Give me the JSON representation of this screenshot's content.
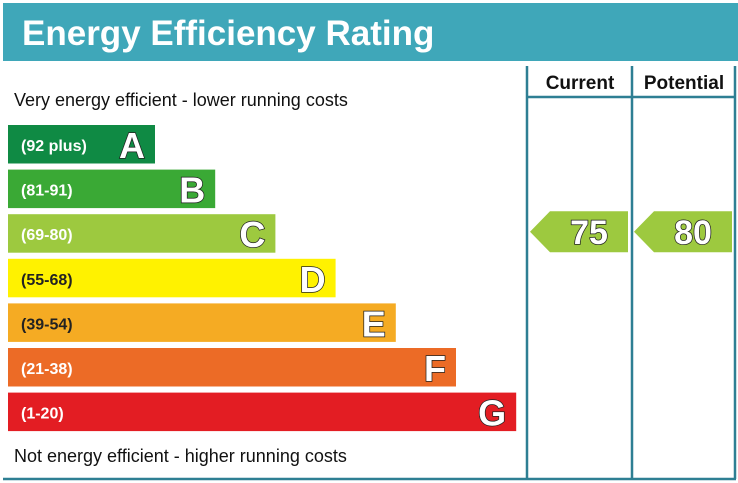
{
  "chart_data": {
    "type": "bar",
    "title": "Energy Efficiency Rating",
    "top_note": "Very energy efficient - lower running costs",
    "bottom_note": "Not energy efficient - higher running costs",
    "columns": [
      "Current",
      "Potential"
    ],
    "bands": [
      {
        "range": "(92 plus)",
        "letter": "A",
        "color": "#0f8a44"
      },
      {
        "range": "(81-91)",
        "letter": "B",
        "color": "#3aa935"
      },
      {
        "range": "(69-80)",
        "letter": "C",
        "color": "#9dc93f"
      },
      {
        "range": "(55-68)",
        "letter": "D",
        "color": "#fff200"
      },
      {
        "range": "(39-54)",
        "letter": "E",
        "color": "#f5ab23"
      },
      {
        "range": "(21-38)",
        "letter": "F",
        "color": "#ec6b26"
      },
      {
        "range": "(1-20)",
        "letter": "G",
        "color": "#e31d23"
      }
    ],
    "current": {
      "value": "75",
      "band": "C",
      "color": "#9dc93f"
    },
    "potential": {
      "value": "80",
      "band": "C",
      "color": "#9dc93f"
    },
    "header_color": "#3fa7b9",
    "border_color": "#2e7f93"
  }
}
